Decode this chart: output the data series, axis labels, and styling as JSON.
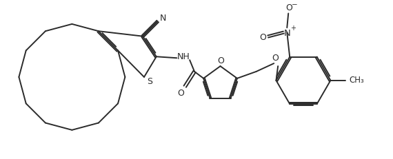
{
  "bg_color": "#ffffff",
  "line_color": "#2a2a2a",
  "line_width": 1.4,
  "text_color": "#2a2a2a",
  "fig_width": 5.7,
  "fig_height": 2.32,
  "dpi": 100,
  "xlim": [
    0,
    5.7
  ],
  "ylim": [
    0,
    2.32
  ]
}
